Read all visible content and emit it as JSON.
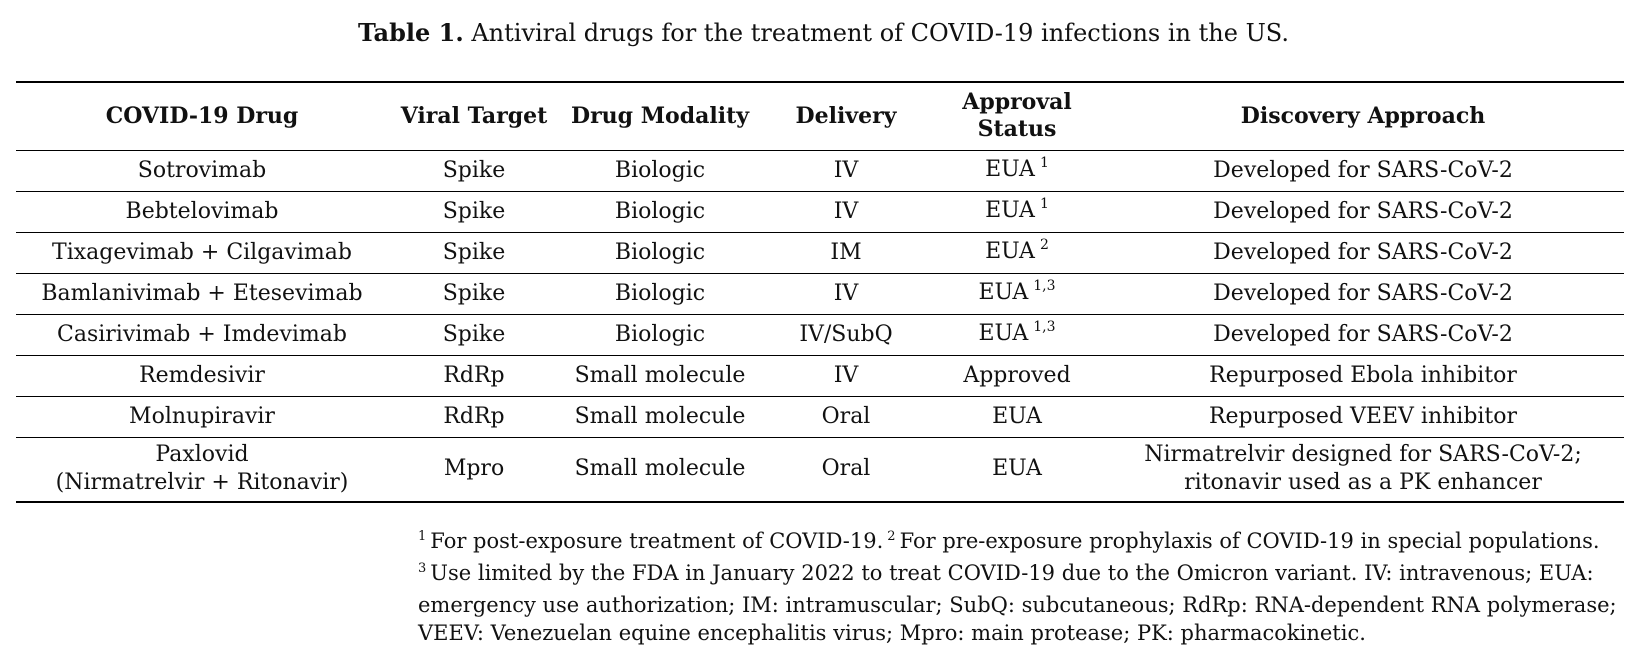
{
  "caption": {
    "label": "Table 1.",
    "text": "Antiviral drugs for the treatment of COVID-19 infections in the US."
  },
  "table": {
    "headers": {
      "drug": "COVID-19 Drug",
      "target": "Viral Target",
      "modality": "Drug Modality",
      "delivery": "Delivery",
      "approval_line1": "Approval",
      "approval_line2": "Status",
      "discovery": "Discovery Approach"
    },
    "rows": [
      {
        "drug": "Sotrovimab",
        "target": "Spike",
        "modality": "Biologic",
        "delivery": "IV",
        "approval": "EUA",
        "approval_sup": "1",
        "discovery": "Developed for SARS-CoV-2"
      },
      {
        "drug": "Bebtelovimab",
        "target": "Spike",
        "modality": "Biologic",
        "delivery": "IV",
        "approval": "EUA",
        "approval_sup": "1",
        "discovery": "Developed for SARS-CoV-2"
      },
      {
        "drug": "Tixagevimab + Cilgavimab",
        "target": "Spike",
        "modality": "Biologic",
        "delivery": "IM",
        "approval": "EUA",
        "approval_sup": "2",
        "discovery": "Developed for SARS-CoV-2"
      },
      {
        "drug": "Bamlanivimab + Etesevimab",
        "target": "Spike",
        "modality": "Biologic",
        "delivery": "IV",
        "approval": "EUA",
        "approval_sup": "1,3",
        "discovery": "Developed for SARS-CoV-2"
      },
      {
        "drug": "Casirivimab + Imdevimab",
        "target": "Spike",
        "modality": "Biologic",
        "delivery": "IV/SubQ",
        "approval": "EUA",
        "approval_sup": "1,3",
        "discovery": "Developed for SARS-CoV-2"
      },
      {
        "drug": "Remdesivir",
        "target": "RdRp",
        "modality": "Small molecule",
        "delivery": "IV",
        "approval": "Approved",
        "approval_sup": "",
        "discovery": "Repurposed Ebola inhibitor"
      },
      {
        "drug": "Molnupiravir",
        "target": "RdRp",
        "modality": "Small molecule",
        "delivery": "Oral",
        "approval": "EUA",
        "approval_sup": "",
        "discovery": "Repurposed VEEV inhibitor"
      },
      {
        "drug_line1": "Paxlovid",
        "drug_line2": "(Nirmatrelvir + Ritonavir)",
        "target": "Mpro",
        "modality": "Small molecule",
        "delivery": "Oral",
        "approval": "EUA",
        "approval_sup": "",
        "discovery_line1": "Nirmatrelvir designed for SARS-CoV-2;",
        "discovery_line2": "ritonavir used as a PK enhancer"
      }
    ]
  },
  "footnotes": {
    "fn1_sup": "1",
    "fn1_text": "For post-exposure treatment of COVID-19.",
    "fn2_sup": "2",
    "fn2_text": "For pre-exposure prophylaxis of COVID-19 in special populations.",
    "fn3_sup": "3",
    "fn3_line1": "Use limited by the FDA in January 2022 to treat COVID-19 due to the Omicron variant. IV: intravenous; EUA:",
    "fn3_line2": "emergency use authorization; IM: intramuscular; SubQ: subcutaneous; RdRp: RNA-dependent RNA polymerase;",
    "fn3_line3": "VEEV: Venezuelan equine encephalitis virus; Mpro: main protease; PK: pharmacokinetic."
  }
}
